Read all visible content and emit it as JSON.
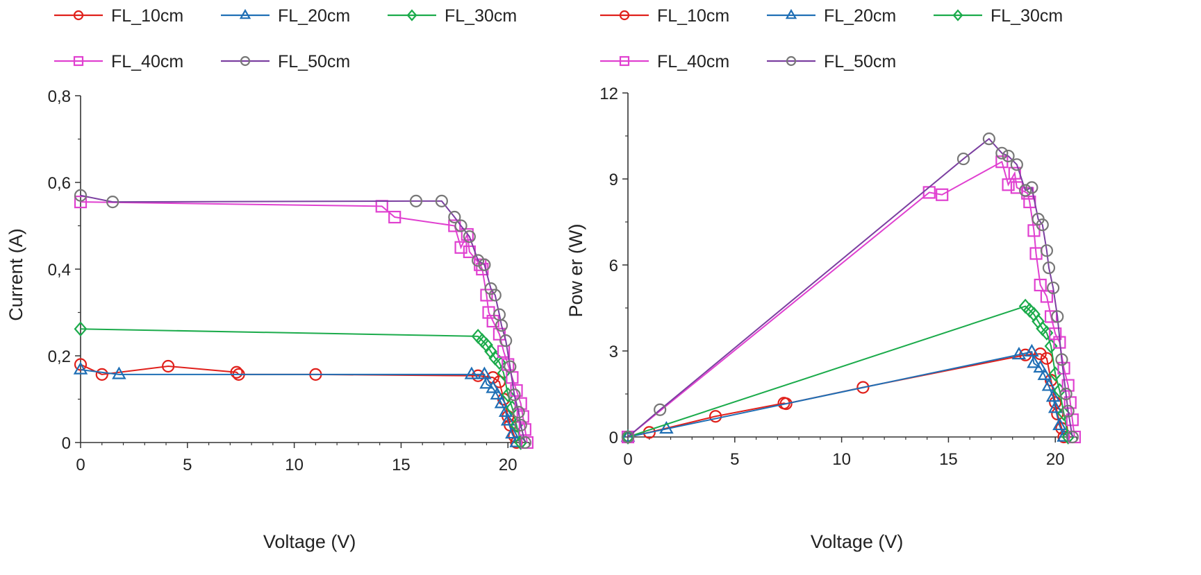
{
  "chart_data": [
    {
      "type": "line",
      "title": "",
      "xlabel": "Voltage (V)",
      "ylabel": "Current (A)",
      "xlim": [
        0,
        21
      ],
      "ylim": [
        0,
        0.8
      ],
      "xticks": [
        "0",
        "5",
        "10",
        "15",
        "20"
      ],
      "yticks": [
        "0",
        "0,2",
        "0,4",
        "0,6",
        "0,8"
      ],
      "grid": false,
      "legend_position": "top",
      "series": [
        {
          "name": "FL_10cm",
          "color": "#e0201b",
          "marker": "circle",
          "x": [
            0,
            1.0,
            4.1,
            7.3,
            7.4,
            11.0,
            18.6,
            19.3,
            19.6,
            19.8,
            20.0,
            20.1,
            20.3,
            20.4
          ],
          "y": [
            0.18,
            0.157,
            0.176,
            0.162,
            0.157,
            0.157,
            0.154,
            0.15,
            0.14,
            0.1,
            0.06,
            0.04,
            0.015,
            0.0
          ]
        },
        {
          "name": "FL_20cm",
          "color": "#1f6fb5",
          "marker": "triangle",
          "x": [
            0,
            1.8,
            18.3,
            18.9,
            19.0,
            19.3,
            19.5,
            19.7,
            19.9,
            20.0,
            20.2,
            20.4
          ],
          "y": [
            0.168,
            0.157,
            0.157,
            0.157,
            0.135,
            0.125,
            0.11,
            0.09,
            0.07,
            0.05,
            0.02,
            0.0
          ]
        },
        {
          "name": "FL_30cm",
          "color": "#1bab4b",
          "marker": "diamond",
          "x": [
            0,
            18.6,
            18.8,
            19.0,
            19.2,
            19.4,
            19.6,
            19.8,
            20.0,
            20.2,
            20.4,
            20.6
          ],
          "y": [
            0.262,
            0.245,
            0.235,
            0.225,
            0.21,
            0.195,
            0.185,
            0.16,
            0.11,
            0.08,
            0.04,
            0.0
          ]
        },
        {
          "name": "FL_40cm",
          "color": "#e040d0",
          "marker": "square",
          "x": [
            0,
            14.1,
            14.7,
            17.5,
            17.8,
            18.1,
            18.2,
            18.7,
            18.8,
            19.0,
            19.1,
            19.3,
            19.6,
            19.8,
            20.0,
            20.2,
            20.4,
            20.6,
            20.7,
            20.8,
            20.9
          ],
          "y": [
            0.555,
            0.545,
            0.52,
            0.5,
            0.45,
            0.48,
            0.44,
            0.41,
            0.4,
            0.34,
            0.3,
            0.28,
            0.25,
            0.21,
            0.18,
            0.15,
            0.12,
            0.09,
            0.06,
            0.03,
            0.0
          ]
        },
        {
          "name": "FL_50cm",
          "color": "#7b3fa0",
          "marker": "circle",
          "x": [
            0,
            1.5,
            15.7,
            16.9,
            17.5,
            17.8,
            18.2,
            18.6,
            18.9,
            19.2,
            19.4,
            19.6,
            19.7,
            19.9,
            20.1,
            20.3,
            20.5,
            20.6,
            20.8
          ],
          "y": [
            0.57,
            0.555,
            0.557,
            0.557,
            0.52,
            0.5,
            0.475,
            0.42,
            0.41,
            0.355,
            0.34,
            0.295,
            0.27,
            0.235,
            0.175,
            0.11,
            0.07,
            0.04,
            0.0
          ]
        }
      ]
    },
    {
      "type": "line",
      "title": "",
      "xlabel": "Voltage (V)",
      "ylabel": "Pow er (W)",
      "xlim": [
        0,
        21
      ],
      "ylim": [
        0,
        12
      ],
      "xticks": [
        "0",
        "5",
        "10",
        "15",
        "20"
      ],
      "yticks": [
        "0",
        "3",
        "6",
        "9",
        "12"
      ],
      "grid": false,
      "legend_position": "top",
      "series": [
        {
          "name": "FL_10cm",
          "color": "#e0201b",
          "marker": "circle",
          "x": [
            0,
            1.0,
            4.1,
            7.3,
            7.4,
            11.0,
            18.6,
            19.3,
            19.6,
            19.8,
            20.0,
            20.1,
            20.3,
            20.4
          ],
          "y": [
            0,
            0.16,
            0.72,
            1.18,
            1.16,
            1.73,
            2.86,
            2.9,
            2.74,
            1.98,
            1.2,
            0.8,
            0.3,
            0
          ]
        },
        {
          "name": "FL_20cm",
          "color": "#1f6fb5",
          "marker": "triangle",
          "x": [
            0,
            1.8,
            18.3,
            18.9,
            19.0,
            19.3,
            19.5,
            19.7,
            19.9,
            20.0,
            20.2,
            20.4
          ],
          "y": [
            0,
            0.28,
            2.87,
            2.97,
            2.57,
            2.41,
            2.15,
            1.77,
            1.39,
            1.0,
            0.4,
            0
          ]
        },
        {
          "name": "FL_30cm",
          "color": "#1bab4b",
          "marker": "diamond",
          "x": [
            0,
            18.6,
            18.8,
            19.0,
            19.2,
            19.4,
            19.6,
            19.8,
            20.0,
            20.2,
            20.4,
            20.6
          ],
          "y": [
            0,
            4.56,
            4.42,
            4.28,
            4.03,
            3.78,
            3.63,
            3.17,
            2.2,
            1.62,
            0.82,
            0
          ]
        },
        {
          "name": "FL_40cm",
          "color": "#e040d0",
          "marker": "square",
          "x": [
            0,
            14.1,
            14.7,
            17.5,
            17.8,
            18.1,
            18.2,
            18.7,
            18.8,
            19.0,
            19.1,
            19.3,
            19.6,
            19.8,
            20.0,
            20.2,
            20.4,
            20.6,
            20.7,
            20.8,
            20.9
          ],
          "y": [
            0,
            8.53,
            8.45,
            9.6,
            8.8,
            9.2,
            8.7,
            8.5,
            8.2,
            7.2,
            6.4,
            5.3,
            4.9,
            4.2,
            3.6,
            3.3,
            2.4,
            1.8,
            1.2,
            0.6,
            0
          ]
        },
        {
          "name": "FL_50cm",
          "color": "#7b3fa0",
          "marker": "circle",
          "x": [
            0,
            1.5,
            15.7,
            16.9,
            17.5,
            17.8,
            18.2,
            18.6,
            18.9,
            19.2,
            19.4,
            19.6,
            19.7,
            19.9,
            20.1,
            20.3,
            20.5,
            20.6,
            20.8
          ],
          "y": [
            0,
            0.95,
            9.7,
            10.4,
            9.9,
            9.8,
            9.5,
            8.6,
            8.7,
            7.6,
            7.4,
            6.5,
            5.9,
            5.2,
            4.2,
            2.7,
            1.5,
            0.9,
            0
          ]
        }
      ]
    }
  ]
}
